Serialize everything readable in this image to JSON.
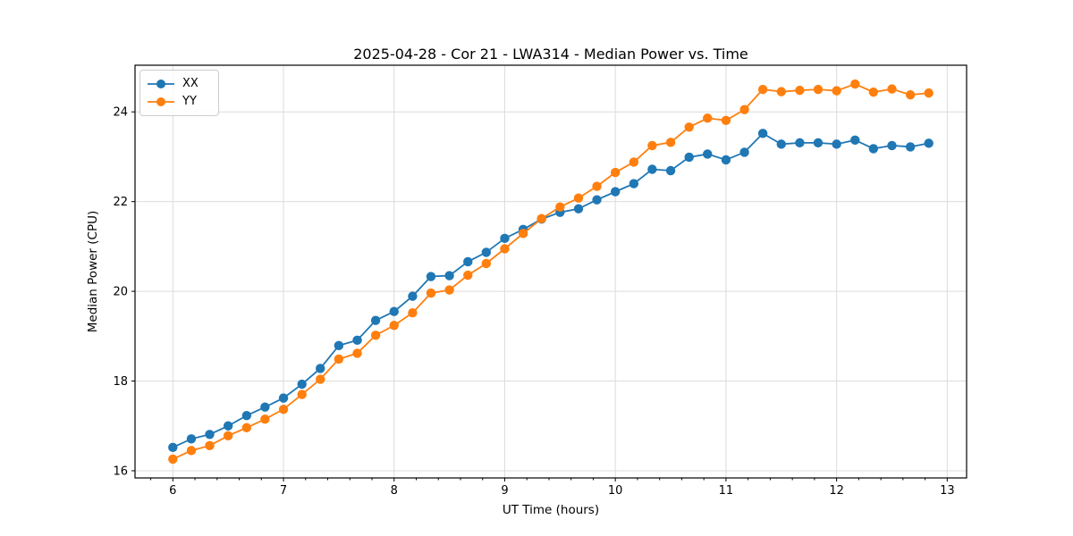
{
  "chart_data": {
    "type": "line",
    "title": "2025-04-28 - Cor 21 - LWA314 - Median Power vs. Time",
    "xlabel": "UT Time (hours)",
    "ylabel": "Median Power (CPU)",
    "xlim": [
      5.658,
      13.175
    ],
    "ylim": [
      15.84,
      25.04
    ],
    "xticks": [
      6,
      7,
      8,
      9,
      10,
      11,
      12,
      13
    ],
    "yticks": [
      16,
      18,
      20,
      22,
      24
    ],
    "x_minor_step": 0.2,
    "grid": "major-both-axes",
    "grid_color": "#dcdcdc",
    "spine_color": "#000000",
    "legend_position": "upper-left",
    "marker": "circle",
    "x": [
      6,
      6.167,
      6.333,
      6.5,
      6.667,
      6.833,
      7,
      7.167,
      7.333,
      7.5,
      7.667,
      7.833,
      8,
      8.167,
      8.333,
      8.5,
      8.667,
      8.833,
      9,
      9.167,
      9.333,
      9.5,
      9.667,
      9.833,
      10,
      10.167,
      10.333,
      10.5,
      10.667,
      10.833,
      11,
      11.167,
      11.333,
      11.5,
      11.667,
      11.833,
      12,
      12.167,
      12.333,
      12.5,
      12.667,
      12.833
    ],
    "series": [
      {
        "name": "XX",
        "color": "#1f77b4",
        "values": [
          16.52,
          16.71,
          16.81,
          17.0,
          17.23,
          17.42,
          17.62,
          17.93,
          18.28,
          18.79,
          18.91,
          19.35,
          19.55,
          19.89,
          20.33,
          20.35,
          20.66,
          20.87,
          21.18,
          21.38,
          21.61,
          21.76,
          21.84,
          22.04,
          22.22,
          22.4,
          22.72,
          22.69,
          22.99,
          23.06,
          22.93,
          23.1,
          23.52,
          23.28,
          23.31,
          23.31,
          23.28,
          23.37,
          23.18,
          23.25,
          23.22,
          23.3
        ]
      },
      {
        "name": "YY",
        "color": "#ff7f0e",
        "values": [
          16.26,
          16.45,
          16.56,
          16.78,
          16.96,
          17.15,
          17.37,
          17.7,
          18.04,
          18.49,
          18.62,
          19.02,
          19.24,
          19.52,
          19.96,
          20.03,
          20.36,
          20.62,
          20.95,
          21.29,
          21.62,
          21.88,
          22.08,
          22.34,
          22.65,
          22.88,
          23.25,
          23.32,
          23.66,
          23.86,
          23.81,
          24.05,
          24.5,
          24.45,
          24.48,
          24.5,
          24.47,
          24.62,
          24.44,
          24.51,
          24.38,
          24.42
        ]
      }
    ]
  }
}
